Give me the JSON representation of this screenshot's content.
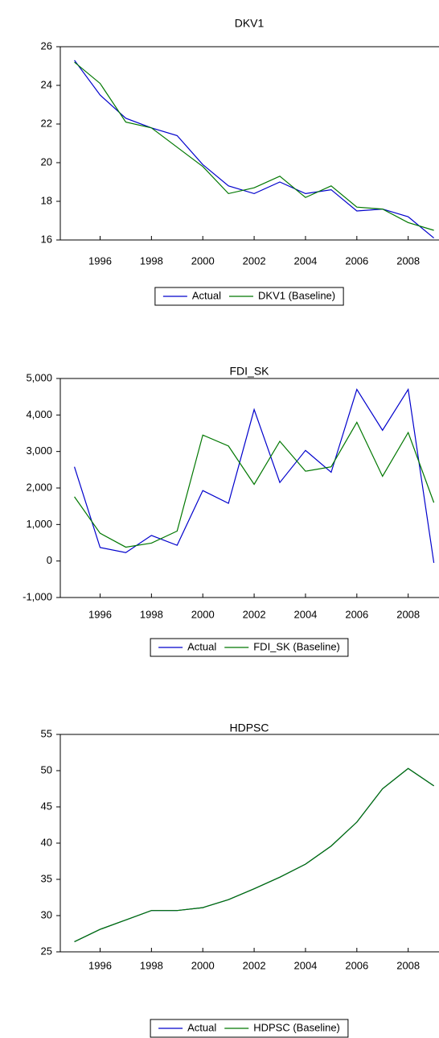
{
  "chart_data": [
    {
      "type": "line",
      "title": "DKV1",
      "x": [
        1995,
        1996,
        1997,
        1998,
        1999,
        2000,
        2001,
        2002,
        2003,
        2004,
        2005,
        2006,
        2007,
        2008,
        2009
      ],
      "xlim": [
        1994.45,
        2009.2
      ],
      "xticks": [
        1996,
        1998,
        2000,
        2002,
        2004,
        2006,
        2008
      ],
      "ylim": [
        16,
        26
      ],
      "yticks": [
        16,
        18,
        20,
        22,
        24,
        26
      ],
      "series": [
        {
          "name": "Actual",
          "color": "#0000cc",
          "values": [
            25.3,
            23.5,
            22.3,
            21.8,
            21.4,
            19.9,
            18.8,
            18.4,
            19.0,
            18.4,
            18.6,
            17.5,
            17.6,
            17.2,
            16.1
          ]
        },
        {
          "name": "DKV1 (Baseline)",
          "color": "#007700",
          "values": [
            25.2,
            24.1,
            22.1,
            21.8,
            20.8,
            19.8,
            18.4,
            18.7,
            19.3,
            18.2,
            18.8,
            17.7,
            17.6,
            16.9,
            16.5
          ]
        }
      ]
    },
    {
      "type": "line",
      "title": "FDI_SK",
      "x": [
        1995,
        1996,
        1997,
        1998,
        1999,
        2000,
        2001,
        2002,
        2003,
        2004,
        2005,
        2006,
        2007,
        2008,
        2009
      ],
      "xlim": [
        1994.45,
        2009.2
      ],
      "xticks": [
        1996,
        1998,
        2000,
        2002,
        2004,
        2006,
        2008
      ],
      "ylim": [
        -1000,
        5000
      ],
      "yticks": [
        {
          "value": -1000,
          "label": "-1,000"
        },
        0,
        {
          "value": 1000,
          "label": "1,000"
        },
        {
          "value": 2000,
          "label": "2,000"
        },
        {
          "value": 3000,
          "label": "3,000"
        },
        {
          "value": 4000,
          "label": "4,000"
        },
        {
          "value": 5000,
          "label": "5,000"
        }
      ],
      "series": [
        {
          "name": "Actual",
          "color": "#0000cc",
          "values": [
            2580,
            370,
            230,
            700,
            430,
            1930,
            1580,
            4150,
            2150,
            3030,
            2430,
            4700,
            3580,
            4700,
            -50
          ]
        },
        {
          "name": "FDI_SK (Baseline)",
          "color": "#007700",
          "values": [
            1760,
            760,
            380,
            490,
            820,
            3450,
            3150,
            2100,
            3280,
            2460,
            2580,
            3800,
            2320,
            3520,
            1600
          ]
        }
      ]
    },
    {
      "type": "line",
      "title": "HDPSC",
      "x": [
        1995,
        1996,
        1997,
        1998,
        1999,
        2000,
        2001,
        2002,
        2003,
        2004,
        2005,
        2006,
        2007,
        2008,
        2009
      ],
      "xlim": [
        1994.45,
        2009.2
      ],
      "xticks": [
        1996,
        1998,
        2000,
        2002,
        2004,
        2006,
        2008
      ],
      "ylim": [
        25,
        55
      ],
      "yticks": [
        25,
        30,
        35,
        40,
        45,
        50,
        55
      ],
      "series": [
        {
          "name": "Actual",
          "color": "#0000cc",
          "values": [
            26.4,
            28.1,
            29.4,
            30.7,
            30.7,
            31.1,
            32.2,
            33.7,
            35.3,
            37.1,
            39.6,
            42.9,
            47.5,
            50.3,
            47.9
          ]
        },
        {
          "name": "HDPSC (Baseline)",
          "color": "#007700",
          "values": [
            26.4,
            28.1,
            29.4,
            30.7,
            30.7,
            31.1,
            32.2,
            33.7,
            35.3,
            37.1,
            39.6,
            42.9,
            47.5,
            50.3,
            47.9
          ]
        }
      ]
    }
  ]
}
